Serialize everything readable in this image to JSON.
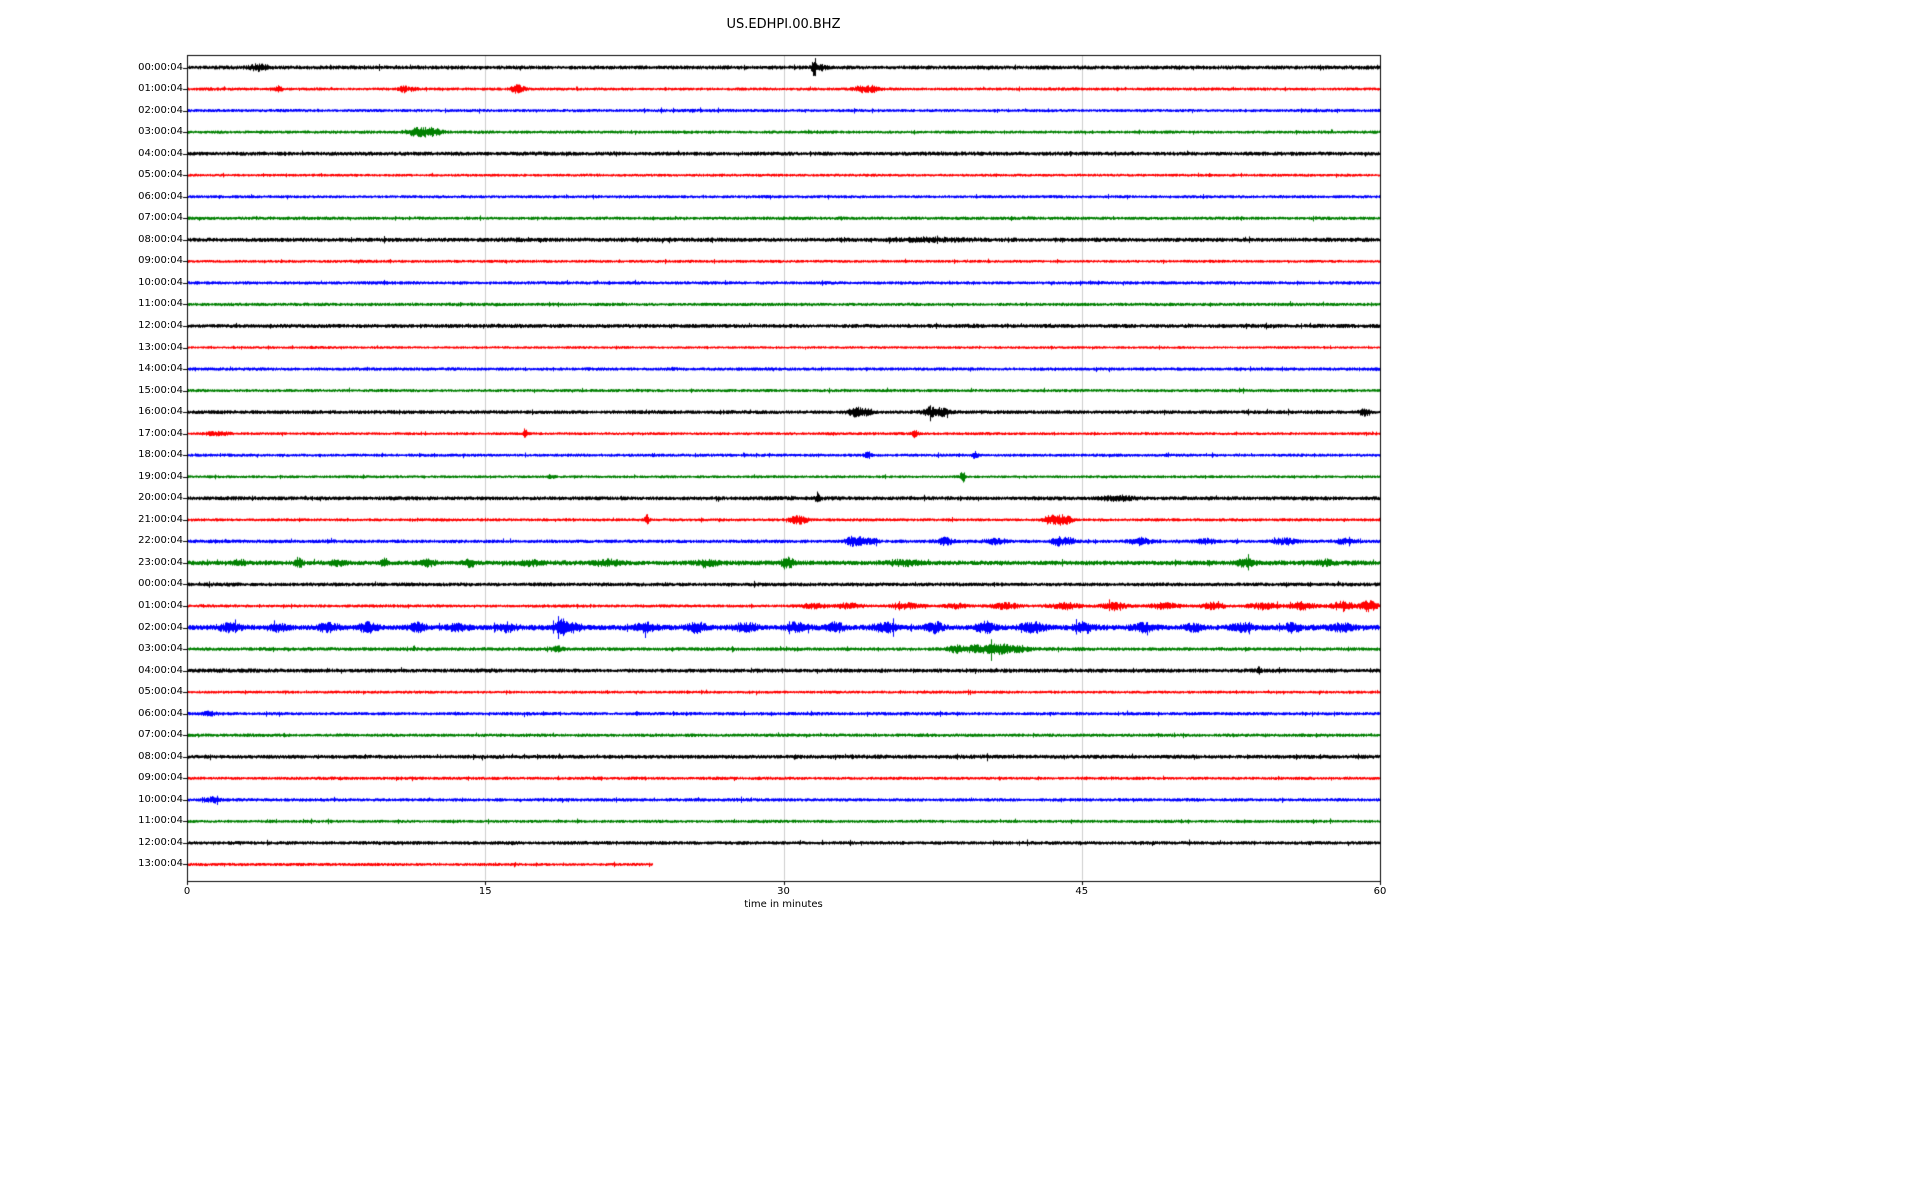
{
  "title": "US.EDHPI.00.BHZ",
  "chart_data": {
    "type": "line",
    "subtype": "seismogram-dayplot",
    "title": "US.EDHPI.00.BHZ",
    "xlabel": "time in minutes",
    "x_range": [
      0,
      60
    ],
    "x_ticks": [
      0,
      15,
      30,
      45,
      60
    ],
    "x_tick_labels": [
      "0",
      "15",
      "30",
      "45",
      "60"
    ],
    "grid": "vertical-only",
    "legend": "none",
    "minutes_per_row": 60,
    "colors": [
      "#000000",
      "#ff0000",
      "#0000ff",
      "#008000"
    ],
    "amp_units": "pixels-half-height",
    "event_format": "[minute, extra_amp_px, sigma_minutes]",
    "rows": [
      {
        "label": "00:00:04",
        "c": 0,
        "a": 1.8,
        "e": [
          [
            3.6,
            2.2,
            0.3
          ],
          [
            31.5,
            7.0,
            0.07
          ],
          [
            31.8,
            2.0,
            0.2
          ]
        ]
      },
      {
        "label": "01:00:04",
        "c": 1,
        "a": 1.4,
        "e": [
          [
            4.6,
            3.0,
            0.12
          ],
          [
            10.9,
            2.2,
            0.18
          ],
          [
            11.4,
            1.8,
            0.12
          ],
          [
            16.6,
            3.2,
            0.22
          ],
          [
            33.9,
            2.4,
            0.25
          ],
          [
            34.5,
            2.2,
            0.2
          ]
        ]
      },
      {
        "label": "02:00:04",
        "c": 2,
        "a": 1.4,
        "e": []
      },
      {
        "label": "03:00:04",
        "c": 3,
        "a": 1.4,
        "e": [
          [
            11.7,
            3.2,
            0.45
          ],
          [
            12.4,
            1.6,
            0.3
          ]
        ]
      },
      {
        "label": "04:00:04",
        "c": 0,
        "a": 1.8,
        "e": []
      },
      {
        "label": "05:00:04",
        "c": 1,
        "a": 1.3,
        "e": []
      },
      {
        "label": "06:00:04",
        "c": 2,
        "a": 1.4,
        "e": []
      },
      {
        "label": "07:00:04",
        "c": 3,
        "a": 1.5,
        "e": []
      },
      {
        "label": "08:00:04",
        "c": 0,
        "a": 1.9,
        "e": [
          [
            37.5,
            1.0,
            1.2
          ]
        ]
      },
      {
        "label": "09:00:04",
        "c": 1,
        "a": 1.3,
        "e": []
      },
      {
        "label": "10:00:04",
        "c": 2,
        "a": 1.5,
        "e": []
      },
      {
        "label": "11:00:04",
        "c": 3,
        "a": 1.5,
        "e": []
      },
      {
        "label": "12:00:04",
        "c": 0,
        "a": 1.8,
        "e": []
      },
      {
        "label": "13:00:04",
        "c": 1,
        "a": 1.2,
        "e": []
      },
      {
        "label": "14:00:04",
        "c": 2,
        "a": 1.5,
        "e": []
      },
      {
        "label": "15:00:04",
        "c": 3,
        "a": 1.4,
        "e": []
      },
      {
        "label": "16:00:04",
        "c": 0,
        "a": 1.7,
        "e": [
          [
            33.6,
            3.8,
            0.25
          ],
          [
            34.2,
            2.8,
            0.2
          ],
          [
            37.3,
            2.8,
            0.22
          ],
          [
            37.9,
            2.8,
            0.28
          ],
          [
            59.2,
            2.8,
            0.18
          ]
        ]
      },
      {
        "label": "17:00:04",
        "c": 1,
        "a": 1.3,
        "e": [
          [
            1.5,
            1.0,
            0.5
          ],
          [
            17.0,
            4.5,
            0.07
          ],
          [
            36.6,
            3.2,
            0.1
          ]
        ]
      },
      {
        "label": "18:00:04",
        "c": 2,
        "a": 1.4,
        "e": [
          [
            34.2,
            3.2,
            0.12
          ],
          [
            39.6,
            2.8,
            0.1
          ]
        ]
      },
      {
        "label": "19:00:04",
        "c": 3,
        "a": 1.3,
        "e": [
          [
            18.3,
            1.8,
            0.12
          ],
          [
            39.0,
            3.8,
            0.1
          ]
        ]
      },
      {
        "label": "20:00:04",
        "c": 0,
        "a": 1.8,
        "e": [
          [
            31.7,
            4.2,
            0.08
          ],
          [
            46.8,
            1.6,
            0.5
          ]
        ]
      },
      {
        "label": "21:00:04",
        "c": 1,
        "a": 1.4,
        "e": [
          [
            23.1,
            3.8,
            0.08
          ],
          [
            30.6,
            2.8,
            0.25
          ],
          [
            31.0,
            2.2,
            0.18
          ],
          [
            43.4,
            3.2,
            0.25
          ],
          [
            43.9,
            3.2,
            0.22
          ],
          [
            44.3,
            2.2,
            0.18
          ]
        ]
      },
      {
        "label": "22:00:04",
        "c": 2,
        "a": 1.6,
        "e": [
          [
            33.4,
            3.8,
            0.2
          ],
          [
            33.9,
            2.8,
            0.18
          ],
          [
            34.4,
            2.2,
            0.18
          ],
          [
            38.1,
            2.8,
            0.25
          ],
          [
            40.6,
            1.8,
            0.35
          ],
          [
            43.8,
            2.8,
            0.25
          ],
          [
            44.4,
            2.2,
            0.22
          ],
          [
            47.9,
            2.2,
            0.35
          ],
          [
            51.2,
            1.8,
            0.35
          ],
          [
            55.2,
            2.2,
            0.45
          ],
          [
            58.2,
            1.8,
            0.3
          ]
        ]
      },
      {
        "label": "23:00:04",
        "c": 3,
        "a": 2.1,
        "e": [
          [
            2.6,
            1.8,
            0.3
          ],
          [
            5.6,
            3.8,
            0.13
          ],
          [
            7.6,
            1.8,
            0.3
          ],
          [
            9.9,
            4.2,
            0.11
          ],
          [
            12.1,
            2.2,
            0.3
          ],
          [
            14.2,
            3.2,
            0.18
          ],
          [
            17.2,
            1.8,
            0.4
          ],
          [
            21.2,
            1.8,
            0.4
          ],
          [
            26.2,
            1.8,
            0.4
          ],
          [
            30.2,
            3.2,
            0.25
          ],
          [
            36.2,
            1.8,
            0.5
          ],
          [
            53.2,
            2.2,
            0.3
          ],
          [
            57.2,
            1.8,
            0.3
          ]
        ]
      },
      {
        "label": "00:00:04",
        "c": 0,
        "a": 1.7,
        "e": []
      },
      {
        "label": "01:00:04",
        "c": 1,
        "a": 1.4,
        "e": [
          [
            31.5,
            2.2,
            0.4
          ],
          [
            33.2,
            1.8,
            0.5
          ],
          [
            36.1,
            2.2,
            0.5
          ],
          [
            38.6,
            1.8,
            0.4
          ],
          [
            41.1,
            2.2,
            0.5
          ],
          [
            44.1,
            2.6,
            0.5
          ],
          [
            46.6,
            2.6,
            0.4
          ],
          [
            49.1,
            2.2,
            0.5
          ],
          [
            51.6,
            2.6,
            0.4
          ],
          [
            54.1,
            2.6,
            0.5
          ],
          [
            56.1,
            3.0,
            0.4
          ],
          [
            58.1,
            3.4,
            0.4
          ],
          [
            59.4,
            4.2,
            0.3
          ]
        ]
      },
      {
        "label": "02:00:04",
        "c": 2,
        "a": 2.4,
        "e": [
          [
            2.1,
            2.6,
            0.4
          ],
          [
            4.6,
            3.0,
            0.3
          ],
          [
            7.1,
            2.6,
            0.4
          ],
          [
            9.1,
            3.4,
            0.3
          ],
          [
            11.6,
            3.4,
            0.3
          ],
          [
            13.6,
            2.6,
            0.4
          ],
          [
            16.1,
            3.4,
            0.3
          ],
          [
            18.8,
            5.0,
            0.22
          ],
          [
            19.4,
            3.4,
            0.3
          ],
          [
            23.1,
            2.6,
            0.4
          ],
          [
            25.6,
            3.4,
            0.3
          ],
          [
            28.1,
            3.0,
            0.4
          ],
          [
            30.6,
            3.4,
            0.3
          ],
          [
            32.6,
            3.8,
            0.3
          ],
          [
            35.1,
            3.0,
            0.4
          ],
          [
            37.6,
            3.4,
            0.3
          ],
          [
            40.1,
            3.8,
            0.3
          ],
          [
            42.6,
            3.0,
            0.4
          ],
          [
            45.1,
            3.4,
            0.3
          ],
          [
            48.1,
            3.0,
            0.4
          ],
          [
            50.6,
            3.4,
            0.3
          ],
          [
            53.1,
            3.0,
            0.4
          ],
          [
            55.6,
            3.4,
            0.3
          ],
          [
            58.1,
            3.0,
            0.4
          ]
        ]
      },
      {
        "label": "03:00:04",
        "c": 3,
        "a": 1.6,
        "e": [
          [
            18.6,
            1.6,
            0.2
          ],
          [
            38.7,
            2.6,
            0.3
          ],
          [
            39.6,
            3.0,
            0.3
          ],
          [
            40.4,
            3.4,
            0.3
          ],
          [
            41.1,
            2.6,
            0.3
          ],
          [
            41.9,
            2.2,
            0.3
          ]
        ]
      },
      {
        "label": "04:00:04",
        "c": 0,
        "a": 1.8,
        "e": [
          [
            53.9,
            2.2,
            0.08
          ]
        ]
      },
      {
        "label": "05:00:04",
        "c": 1,
        "a": 1.3,
        "e": []
      },
      {
        "label": "06:00:04",
        "c": 2,
        "a": 1.5,
        "e": [
          [
            1.1,
            1.6,
            0.3
          ]
        ]
      },
      {
        "label": "07:00:04",
        "c": 3,
        "a": 1.5,
        "e": []
      },
      {
        "label": "08:00:04",
        "c": 0,
        "a": 1.8,
        "e": []
      },
      {
        "label": "09:00:04",
        "c": 1,
        "a": 1.4,
        "e": []
      },
      {
        "label": "10:00:04",
        "c": 2,
        "a": 1.5,
        "e": [
          [
            1.3,
            1.6,
            0.2
          ]
        ]
      },
      {
        "label": "11:00:04",
        "c": 3,
        "a": 1.4,
        "e": []
      },
      {
        "label": "12:00:04",
        "c": 0,
        "a": 1.6,
        "e": []
      },
      {
        "label": "13:00:04",
        "c": 1,
        "a": 1.4,
        "e": [],
        "end": 23.4
      }
    ]
  }
}
